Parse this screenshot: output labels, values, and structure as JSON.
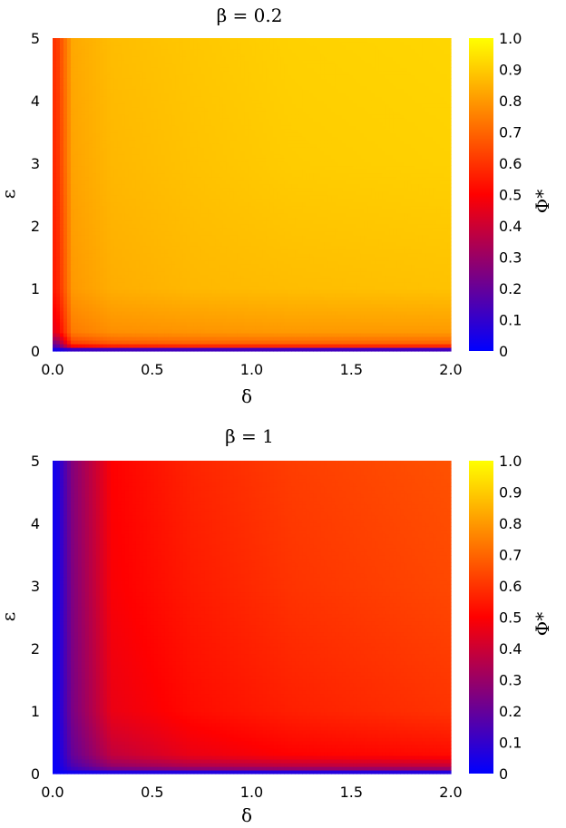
{
  "chart_data": [
    {
      "type": "heatmap",
      "title": "β = 0.2",
      "xlabel": "δ",
      "ylabel": "ε",
      "xlim": [
        0,
        2
      ],
      "ylim": [
        0,
        5
      ],
      "x_ticks": [
        "0.0",
        "0.5",
        "1.0",
        "1.5",
        "2.0"
      ],
      "y_ticks": [
        "0",
        "1",
        "2",
        "3",
        "4",
        "5"
      ],
      "colorbar": {
        "label": "Φ*",
        "range": [
          0,
          1
        ],
        "ticks": [
          "0",
          "0.1",
          "0.2",
          "0.3",
          "0.4",
          "0.5",
          "0.6",
          "0.7",
          "0.8",
          "0.9",
          "1.0"
        ],
        "colors": [
          "#0000ff",
          "#ff0000",
          "#ffff00"
        ]
      },
      "grid": {
        "x": [
          0.02,
          0.1,
          0.3,
          0.7,
          1.2,
          2.0
        ],
        "y": [
          0.02,
          0.1,
          0.3,
          1.0,
          3.0,
          5.0
        ],
        "z": [
          [
            0.02,
            0.05,
            0.06,
            0.06,
            0.06,
            0.06
          ],
          [
            0.2,
            0.6,
            0.66,
            0.68,
            0.68,
            0.68
          ],
          [
            0.45,
            0.74,
            0.78,
            0.79,
            0.8,
            0.8
          ],
          [
            0.55,
            0.8,
            0.84,
            0.86,
            0.87,
            0.88
          ],
          [
            0.58,
            0.82,
            0.86,
            0.88,
            0.9,
            0.91
          ],
          [
            0.6,
            0.83,
            0.87,
            0.89,
            0.91,
            0.92
          ]
        ]
      }
    },
    {
      "type": "heatmap",
      "title": "β = 1",
      "xlabel": "δ",
      "ylabel": "ε",
      "xlim": [
        0,
        2
      ],
      "ylim": [
        0,
        5
      ],
      "x_ticks": [
        "0.0",
        "0.5",
        "1.0",
        "1.5",
        "2.0"
      ],
      "y_ticks": [
        "0",
        "1",
        "2",
        "3",
        "4",
        "5"
      ],
      "colorbar": {
        "label": "Φ*",
        "range": [
          0,
          1
        ],
        "ticks": [
          "0",
          "0.1",
          "0.2",
          "0.3",
          "0.4",
          "0.5",
          "0.6",
          "0.7",
          "0.8",
          "0.9",
          "1.0"
        ],
        "colors": [
          "#0000ff",
          "#ff0000",
          "#ffff00"
        ]
      },
      "grid": {
        "x": [
          0.02,
          0.1,
          0.3,
          0.7,
          1.2,
          2.0
        ],
        "y": [
          0.02,
          0.1,
          0.3,
          1.0,
          3.0,
          5.0
        ],
        "z": [
          [
            0.01,
            0.02,
            0.03,
            0.03,
            0.03,
            0.03
          ],
          [
            0.02,
            0.14,
            0.28,
            0.33,
            0.35,
            0.36
          ],
          [
            0.02,
            0.2,
            0.38,
            0.46,
            0.5,
            0.52
          ],
          [
            0.03,
            0.24,
            0.46,
            0.52,
            0.56,
            0.6
          ],
          [
            0.03,
            0.25,
            0.49,
            0.55,
            0.6,
            0.64
          ],
          [
            0.04,
            0.26,
            0.5,
            0.57,
            0.62,
            0.66
          ]
        ]
      }
    }
  ]
}
